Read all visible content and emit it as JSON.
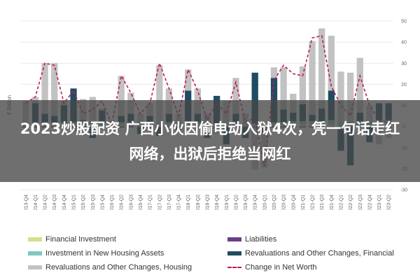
{
  "overlay": {
    "headline": "2023炒股配资 广西小伙因偷电动入狱4次，凭一句话走红网络，出狱后拒绝当网红"
  },
  "chart_data": {
    "type": "bar",
    "stacked": true,
    "ylabel": "€ Billion",
    "ylim": [
      -30,
      50
    ],
    "yticks": [
      -30,
      -20,
      -10,
      0,
      10,
      20,
      30,
      40,
      50
    ],
    "grid": true,
    "legend_position": "bottom",
    "categories": [
      "2013-Q4",
      "2014-Q1",
      "2014-Q2",
      "2014-Q3",
      "2014-Q4",
      "2015-Q1",
      "2015-Q2",
      "2015-Q3",
      "2015-Q4",
      "2016-Q1",
      "2016-Q2",
      "2016-Q3",
      "2016-Q4",
      "2017-Q1",
      "2017-Q2",
      "2017-Q3",
      "2017-Q4",
      "2018-Q1",
      "2018-Q2",
      "2018-Q3",
      "2018-Q4",
      "2019-Q1",
      "2019-Q2",
      "2019-Q3",
      "2019-Q4",
      "2020-Q1",
      "2020-Q2",
      "2020-Q3",
      "2020-Q4",
      "2021-Q1",
      "2021-Q2",
      "2021-Q3",
      "2021-Q4",
      "2022-Q1",
      "2022-Q2",
      "2022-Q3",
      "2022-Q4",
      "2023-Q1",
      "2023-Q2"
    ],
    "series": [
      {
        "name": "Financial Investment",
        "kind": "bar",
        "color": "#d4e08a",
        "values": [
          1,
          1,
          1,
          1,
          1,
          1,
          1,
          1,
          0.5,
          1,
          1,
          1,
          1,
          1,
          1,
          1,
          1,
          1,
          1,
          1,
          0.5,
          1,
          1,
          1,
          0.5,
          -1,
          1,
          1,
          1,
          1,
          1,
          1,
          1,
          -1,
          0.5,
          0.5,
          1,
          1,
          1
        ]
      },
      {
        "name": "Liabilities",
        "kind": "bar",
        "color": "#6b3f87",
        "values": [
          -0.5,
          -0.5,
          -0.5,
          -0.5,
          -0.5,
          -0.5,
          -0.5,
          -0.5,
          -0.5,
          -0.5,
          -0.5,
          -0.5,
          -0.5,
          -0.5,
          -0.5,
          -0.5,
          -0.5,
          -0.5,
          -0.5,
          -0.5,
          -0.5,
          -0.5,
          -0.5,
          -0.5,
          -0.5,
          -0.5,
          -0.5,
          -0.5,
          -0.5,
          -0.5,
          -0.5,
          -0.5,
          -0.5,
          -0.5,
          -0.5,
          -0.5,
          -0.5,
          -0.5,
          -0.5
        ]
      },
      {
        "name": "Investment in New Housing Assets",
        "kind": "bar",
        "color": "#7dc8c4",
        "values": [
          1,
          1,
          1,
          1,
          1,
          1,
          1,
          1,
          1,
          1,
          1,
          1,
          1,
          1,
          1,
          1,
          1,
          1,
          1,
          1,
          1,
          1,
          1,
          1,
          1,
          0.5,
          1,
          1,
          1.5,
          1.5,
          1.5,
          1.5,
          2,
          2,
          2,
          2,
          2,
          2,
          2
        ]
      },
      {
        "name": "Revaluations and Other Changes, Financial",
        "kind": "bar",
        "color": "#1e4d63",
        "values": [
          0,
          9,
          4,
          3,
          8,
          16,
          1,
          -5,
          6,
          0,
          3,
          4,
          -3,
          3,
          -4,
          4,
          -1,
          15,
          4,
          -5,
          13,
          -8,
          4,
          -5,
          24,
          -2,
          21,
          6,
          4,
          8,
          3,
          6,
          14,
          -10,
          -18,
          4,
          -7,
          8,
          8
        ]
      },
      {
        "name": "Revaluations and Other Changes, Housing",
        "kind": "bar",
        "color": "#c2c2c2",
        "values": [
          10,
          3,
          24,
          25,
          2,
          -2,
          10,
          12,
          1,
          1,
          19,
          10,
          4,
          6,
          27,
          12,
          4,
          10,
          12,
          4,
          -3,
          10,
          17,
          4,
          -20,
          -16,
          5,
          20,
          9,
          18,
          35,
          38,
          26,
          24,
          23,
          26,
          7,
          -8,
          -5
        ]
      },
      {
        "name": "Change in Net Worth",
        "kind": "line",
        "color": "#c2185b",
        "values": [
          11,
          14,
          30,
          29,
          11,
          17,
          6,
          8,
          12,
          1,
          24,
          16,
          6,
          11,
          30,
          18,
          5,
          27,
          17,
          3,
          11,
          6,
          21,
          2,
          4,
          -19,
          22,
          29,
          25,
          24,
          42,
          43,
          19,
          10,
          5,
          24,
          10,
          3,
          2
        ]
      }
    ]
  },
  "legend": {
    "items": [
      {
        "label": "Financial Investment",
        "color": "#d4e08a",
        "style": "bar"
      },
      {
        "label": "Liabilities",
        "color": "#6b3f87",
        "style": "bar"
      },
      {
        "label": "Investment in New Housing Assets",
        "color": "#7dc8c4",
        "style": "bar"
      },
      {
        "label": "Revaluations and Other Changes, Financial",
        "color": "#1e4d63",
        "style": "bar"
      },
      {
        "label": "Revaluations and Other Changes, Housing",
        "color": "#c2c2c2",
        "style": "bar"
      },
      {
        "label": "Change in Net Worth",
        "color": "#c2185b",
        "style": "dash"
      }
    ]
  }
}
